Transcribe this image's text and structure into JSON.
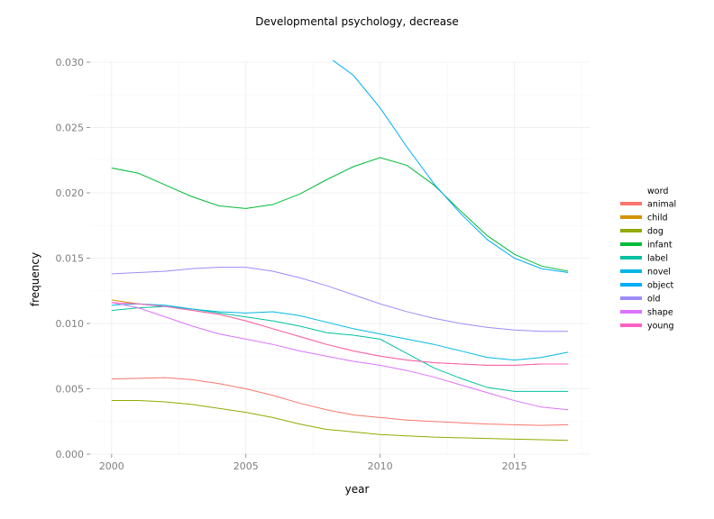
{
  "chart_data": {
    "type": "line",
    "title": "Developmental psychology, decrease",
    "xlabel": "year",
    "ylabel": "frequency",
    "xlim": [
      1999.2,
      2017.8
    ],
    "ylim": [
      0,
      0.03
    ],
    "x_ticks": [
      2000,
      2005,
      2010,
      2015
    ],
    "x_tick_labels": [
      "2000",
      "2005",
      "2010",
      "2015"
    ],
    "y_ticks": [
      0,
      0.005,
      0.01,
      0.015,
      0.02,
      0.025,
      0.03
    ],
    "y_tick_labels": [
      "0.000",
      "0.005",
      "0.010",
      "0.015",
      "0.020",
      "0.025",
      "0.030"
    ],
    "grid": true,
    "legend": {
      "title": "word",
      "placement": "right"
    },
    "x": [
      2000,
      2001,
      2002,
      2003,
      2004,
      2005,
      2006,
      2007,
      2008,
      2009,
      2010,
      2011,
      2012,
      2013,
      2014,
      2015,
      2016,
      2017
    ],
    "series": [
      {
        "name": "animal",
        "color": "#F8766D",
        "values": [
          0.00575,
          0.0058,
          0.00585,
          0.0057,
          0.0054,
          0.005,
          0.0045,
          0.0039,
          0.0034,
          0.003,
          0.0028,
          0.0026,
          0.0025,
          0.0024,
          0.0023,
          0.00225,
          0.0022,
          0.00225
        ]
      },
      {
        "name": "child",
        "color": "#D39200",
        "values": [
          0.0118,
          0.0115,
          0.0113,
          0.011,
          0.0107,
          0.0102,
          0.0096,
          0.009,
          0.0084,
          0.0079,
          0.0075,
          0.0072,
          0.007,
          0.0069,
          0.0068,
          0.0068,
          0.0069,
          0.0069
        ]
      },
      {
        "name": "dog",
        "color": "#93AA00",
        "values": [
          0.0041,
          0.0041,
          0.004,
          0.0038,
          0.0035,
          0.0032,
          0.0028,
          0.0023,
          0.0019,
          0.0017,
          0.0015,
          0.0014,
          0.0013,
          0.00125,
          0.0012,
          0.00115,
          0.0011,
          0.00105
        ]
      },
      {
        "name": "infant",
        "color": "#00BA38",
        "values": [
          0.0219,
          0.0215,
          0.0206,
          0.0197,
          0.019,
          0.0188,
          0.0191,
          0.0199,
          0.021,
          0.022,
          0.0227,
          0.0221,
          0.0206,
          0.0186,
          0.0167,
          0.0153,
          0.0144,
          0.014
        ]
      },
      {
        "name": "label",
        "color": "#00C19F",
        "values": [
          0.011,
          0.0112,
          0.0113,
          0.0111,
          0.0108,
          0.0105,
          0.0102,
          0.0098,
          0.0093,
          0.0091,
          0.0088,
          0.0077,
          0.0066,
          0.0058,
          0.0051,
          0.0048,
          0.0048,
          0.0048
        ]
      },
      {
        "name": "novel",
        "color": "#00B9E3",
        "values": [
          0.0114,
          0.0115,
          0.0114,
          0.0111,
          0.0109,
          0.0108,
          0.0109,
          0.0106,
          0.0101,
          0.0096,
          0.0092,
          0.0088,
          0.0084,
          0.0079,
          0.0074,
          0.0072,
          0.0074,
          0.0078
        ]
      },
      {
        "name": "object",
        "color": "#00ADFA",
        "values": [
          null,
          null,
          null,
          null,
          null,
          null,
          null,
          null,
          0.0305,
          0.029,
          0.0265,
          0.0235,
          0.0207,
          0.0184,
          0.0164,
          0.015,
          0.0142,
          0.0139
        ]
      },
      {
        "name": "old",
        "color": "#9C8BF9",
        "values": [
          0.0138,
          0.0139,
          0.014,
          0.0142,
          0.0143,
          0.0143,
          0.014,
          0.0135,
          0.0129,
          0.0122,
          0.0115,
          0.0109,
          0.0104,
          0.01,
          0.0097,
          0.0095,
          0.0094,
          0.0094
        ]
      },
      {
        "name": "shape",
        "color": "#DB72FB",
        "values": [
          0.0116,
          0.0112,
          0.0105,
          0.0098,
          0.0092,
          0.0088,
          0.0084,
          0.0079,
          0.0075,
          0.0071,
          0.0068,
          0.0064,
          0.0059,
          0.0053,
          0.0047,
          0.0041,
          0.0036,
          0.0034
        ]
      },
      {
        "name": "young",
        "color": "#FF61C3",
        "values": [
          0.0116,
          0.0115,
          0.0113,
          0.011,
          0.0107,
          0.0102,
          0.0096,
          0.009,
          0.0084,
          0.0079,
          0.0075,
          0.0072,
          0.007,
          0.0069,
          0.0068,
          0.0068,
          0.0069,
          0.0069
        ]
      }
    ]
  }
}
